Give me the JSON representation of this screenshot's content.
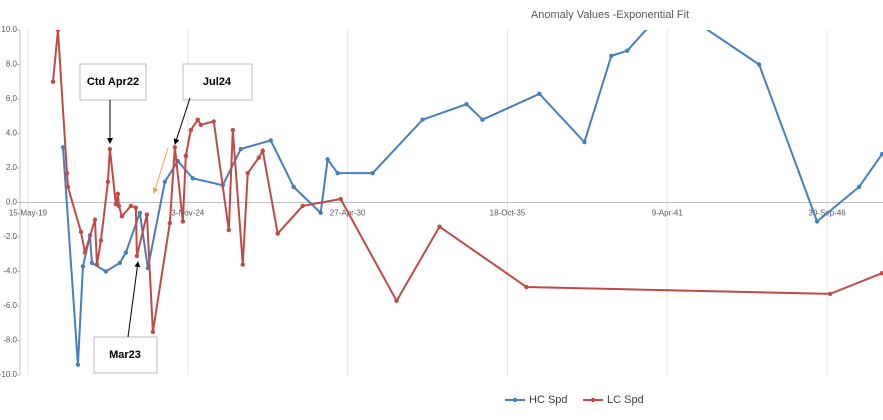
{
  "chart_data": {
    "type": "line",
    "title": "Anomaly Values -Exponential Fit",
    "series": [
      {
        "name": "HC Spd",
        "color": "#4a7ebb",
        "x": [
          44038,
          44225,
          44288,
          44375,
          44400,
          44575,
          44750,
          44825,
          45000,
          45100,
          45313,
          45475,
          45663,
          46038,
          46263,
          46638,
          46925,
          47263,
          47350,
          47475,
          47913,
          48538,
          49088,
          49288,
          50000,
          50563,
          50900,
          51100,
          51625,
          52750,
          53475,
          54000,
          54288
        ],
        "values": [
          3.2,
          -9.4,
          -3.7,
          -1.9,
          -3.5,
          -4.0,
          -3.5,
          -2.9,
          -0.6,
          -3.8,
          1.2,
          2.4,
          1.4,
          1.0,
          3.1,
          3.6,
          0.9,
          -0.6,
          2.5,
          1.7,
          1.7,
          4.8,
          5.7,
          4.8,
          6.3,
          3.5,
          8.5,
          8.8,
          11.5,
          8.0,
          -1.1,
          0.9,
          2.8
        ]
      },
      {
        "name": "LC Spd",
        "color": "#be4b48",
        "x": [
          43913,
          43975,
          44088,
          44100,
          44263,
          44313,
          44438,
          44463,
          44513,
          44600,
          44625,
          44700,
          44725,
          44738,
          44775,
          44888,
          44950,
          44963,
          45088,
          45163,
          45375,
          45438,
          45538,
          45575,
          45638,
          45725,
          45763,
          45925,
          46113,
          46163,
          46288,
          46350,
          46488,
          46538,
          46725,
          47038,
          47513,
          48213,
          48750,
          49838,
          53638,
          54288
        ],
        "values": [
          7.0,
          10.0,
          1.7,
          0.9,
          -1.7,
          -2.9,
          -1.0,
          -3.6,
          -2.2,
          1.2,
          3.1,
          -0.1,
          0.5,
          -0.2,
          -0.8,
          -0.2,
          -0.3,
          -3.1,
          -0.7,
          -7.5,
          -1.2,
          3.2,
          -1.1,
          2.7,
          4.2,
          4.8,
          4.5,
          4.7,
          -1.6,
          4.2,
          -3.6,
          1.7,
          2.6,
          3.0,
          -1.8,
          -0.2,
          0.2,
          -5.7,
          -1.4,
          -4.9,
          -5.3,
          -4.1
        ]
      }
    ],
    "xlim": [
      43500,
      54300
    ],
    "xticks": [
      {
        "value": 43600,
        "label": "15-May-19"
      },
      {
        "value": 45600,
        "label": "3-Nov-24"
      },
      {
        "value": 47600,
        "label": "27-Apr-30"
      },
      {
        "value": 49600,
        "label": "18-Oct-35"
      },
      {
        "value": 51600,
        "label": "9-Apr-41"
      },
      {
        "value": 53600,
        "label": "30-Sep-46"
      }
    ],
    "ylim": [
      -10,
      10
    ],
    "yticks": [
      {
        "value": -10,
        "label": "-10.0"
      },
      {
        "value": -8,
        "label": "-8.0"
      },
      {
        "value": -6,
        "label": "-6.0"
      },
      {
        "value": -4,
        "label": "-4.0"
      },
      {
        "value": -2,
        "label": "-2.0"
      },
      {
        "value": 0,
        "label": "0.0"
      },
      {
        "value": 2,
        "label": "2.0"
      },
      {
        "value": 4,
        "label": "4.0"
      },
      {
        "value": 6,
        "label": "6.0"
      },
      {
        "value": 8,
        "label": "8.0"
      },
      {
        "value": 10,
        "label": "10.0"
      }
    ],
    "grid": true,
    "legend": "bottom",
    "annotations": [
      "Ctd Apr22",
      "Jul24",
      "Mar23"
    ]
  }
}
